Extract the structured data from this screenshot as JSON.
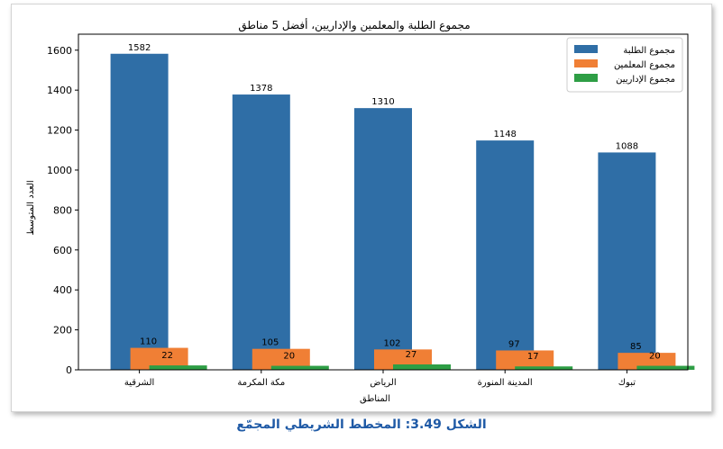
{
  "chart_data": {
    "type": "bar",
    "title": "مجموع الطلبة والمعلمين والإداريين، أفضل 5 مناطق",
    "xlabel": "المناطق",
    "ylabel": "العدد المتوسط",
    "categories": [
      "الشرقية",
      "مكة المكرمة",
      "الرياض",
      "المدينة المنورة",
      "تبوك"
    ],
    "series": [
      {
        "name": "مجموع الطلبة",
        "values": [
          1582,
          1378,
          1310,
          1148,
          1088
        ],
        "color": "#2f6ea6"
      },
      {
        "name": "مجموع المعلمين",
        "values": [
          110,
          105,
          102,
          97,
          85
        ],
        "color": "#f07f35"
      },
      {
        "name": "مجموع الإداريين",
        "values": [
          22,
          20,
          27,
          17,
          20
        ],
        "color": "#2e9e45"
      }
    ],
    "ylim": [
      0,
      1680
    ],
    "yticks": [
      0,
      200,
      400,
      600,
      800,
      1000,
      1200,
      1400,
      1600
    ],
    "legend_position": "top-right",
    "grid": false
  },
  "caption": "الشكل 3.49: المخطط الشريطي المجمّع"
}
